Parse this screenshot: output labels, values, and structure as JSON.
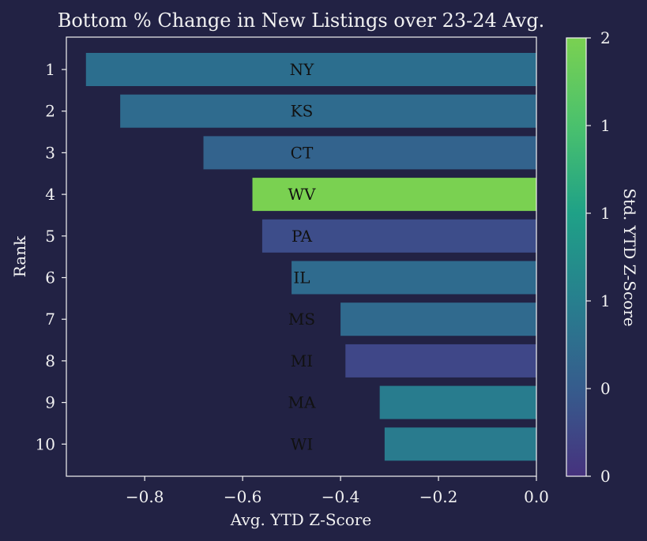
{
  "chart_data": {
    "type": "bar",
    "orientation": "horizontal",
    "title": "Bottom % Change in New Listings over 23-24 Avg.",
    "xlabel": "Avg. YTD Z-Score",
    "ylabel": "Rank",
    "xlim": [
      -0.96,
      0.0
    ],
    "x_ticks": [
      "−0.8",
      "−0.6",
      "−0.4",
      "−0.2",
      "0.0"
    ],
    "x_tick_values": [
      -0.8,
      -0.6,
      -0.4,
      -0.2,
      0.0
    ],
    "categories": [
      "1",
      "2",
      "3",
      "4",
      "5",
      "6",
      "7",
      "8",
      "9",
      "10"
    ],
    "bar_labels": [
      "NY",
      "KS",
      "CT",
      "WV",
      "PA",
      "IL",
      "MS",
      "MI",
      "MA",
      "WI"
    ],
    "values": [
      -0.92,
      -0.85,
      -0.68,
      -0.58,
      -0.56,
      -0.5,
      -0.4,
      -0.39,
      -0.32,
      -0.31
    ],
    "colors": [
      "#2c6e8e",
      "#2f6b8e",
      "#33638d",
      "#7ad151",
      "#3d4d8a",
      "#2f6b8e",
      "#306a8e",
      "#3f4788",
      "#287c8e",
      "#297b8e"
    ],
    "colorbar": {
      "label": "Std. YTD Z-Score",
      "tick_labels": [
        "2",
        "1",
        "1",
        "1",
        "0",
        "0"
      ],
      "tick_values": [
        2.0,
        1.5,
        1.0,
        0.5,
        0.0,
        -0.5
      ],
      "range": [
        -0.5,
        2.0
      ],
      "colormap": "viridis"
    },
    "grid": false,
    "background": "#222244"
  }
}
